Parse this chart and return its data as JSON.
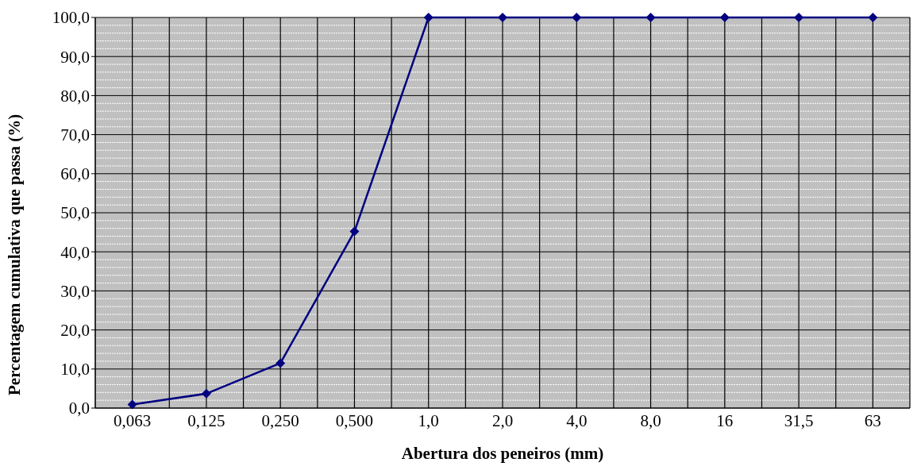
{
  "chart_data": {
    "type": "line",
    "xlabel": "Abertura dos peneiros (mm)",
    "ylabel": "Percentagem cumulativa que passa (%)",
    "categories": [
      "0,063",
      "0,125",
      "0,250",
      "0,500",
      "1,0",
      "2,0",
      "4,0",
      "8,0",
      "16",
      "31,5",
      "63"
    ],
    "series": [
      {
        "color": "#000080",
        "values": [
          0.9,
          3.7,
          11.5,
          45.2,
          100,
          100,
          100,
          100,
          100,
          100,
          100
        ]
      }
    ],
    "ylim": [
      0,
      100
    ],
    "yticks": [
      {
        "value": 0,
        "label": "0,0"
      },
      {
        "value": 10,
        "label": "10,0"
      },
      {
        "value": 20,
        "label": "20,0"
      },
      {
        "value": 30,
        "label": "30,0"
      },
      {
        "value": 40,
        "label": "40,0"
      },
      {
        "value": 50,
        "label": "50,0"
      },
      {
        "value": 60,
        "label": "60,0"
      },
      {
        "value": 70,
        "label": "70,0"
      },
      {
        "value": 80,
        "label": "80,0"
      },
      {
        "value": 90,
        "label": "90,0"
      },
      {
        "value": 100,
        "label": "100,0"
      }
    ],
    "grid": true,
    "marker": "diamond",
    "line_style": "solid",
    "legend": false
  }
}
